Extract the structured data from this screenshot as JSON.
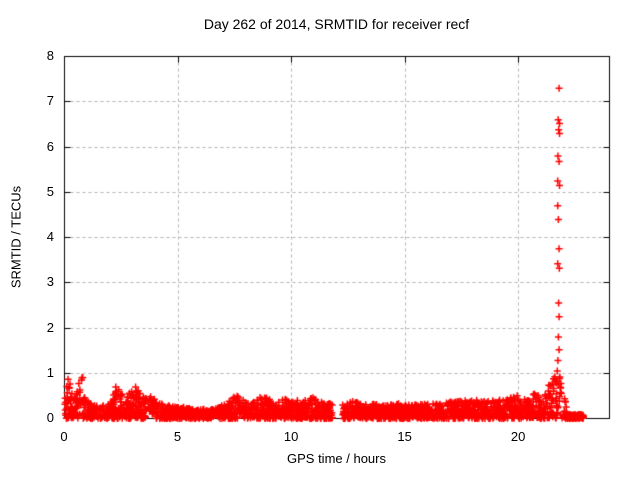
{
  "chart_data": {
    "type": "scatter",
    "title": "Day 262 of 2014, SRMTID for receiver recf",
    "xlabel": "GPS time / hours",
    "ylabel": "SRMTID / TECUs",
    "xlim": [
      0,
      24
    ],
    "ylim": [
      0,
      8
    ],
    "x_ticks": [
      0,
      5,
      10,
      15,
      20
    ],
    "y_ticks": [
      0,
      1,
      2,
      3,
      4,
      5,
      6,
      7,
      8
    ],
    "grid": true,
    "grid_color": "#b3b3b3",
    "axis_color": "#000000",
    "marker": {
      "glyph": "plus",
      "color": "#ff0000",
      "size": 7
    },
    "series_name": "SRMTID",
    "spike_points": [
      [
        21.78,
        7.3
      ],
      [
        21.74,
        6.6
      ],
      [
        21.8,
        6.52
      ],
      [
        21.76,
        6.38
      ],
      [
        21.8,
        6.3
      ],
      [
        21.73,
        5.8
      ],
      [
        21.78,
        5.68
      ],
      [
        21.72,
        5.25
      ],
      [
        21.8,
        5.15
      ],
      [
        21.72,
        4.7
      ],
      [
        21.75,
        4.4
      ],
      [
        21.78,
        3.75
      ],
      [
        21.72,
        3.42
      ],
      [
        21.79,
        3.32
      ],
      [
        21.76,
        2.55
      ],
      [
        21.78,
        2.25
      ],
      [
        21.75,
        1.8
      ],
      [
        21.78,
        1.52
      ],
      [
        21.73,
        1.28
      ],
      [
        21.7,
        1.05
      ]
    ],
    "band": {
      "x_start": 0,
      "x_end": 22.12,
      "points_per_hour": 108,
      "gap": [
        11.8,
        12.25
      ],
      "y_power": 1.35,
      "seed": 20140262,
      "envelope": [
        [
          0.0,
          0.88
        ],
        [
          0.2,
          0.9
        ],
        [
          0.35,
          0.5
        ],
        [
          0.55,
          0.62
        ],
        [
          0.7,
          1.02
        ],
        [
          0.85,
          0.85
        ],
        [
          1.0,
          0.4
        ],
        [
          1.3,
          0.28
        ],
        [
          1.7,
          0.3
        ],
        [
          2.0,
          0.35
        ],
        [
          2.25,
          0.72
        ],
        [
          2.5,
          0.6
        ],
        [
          2.75,
          0.5
        ],
        [
          3.0,
          0.82
        ],
        [
          3.2,
          0.65
        ],
        [
          3.5,
          0.45
        ],
        [
          3.8,
          0.5
        ],
        [
          4.1,
          0.4
        ],
        [
          4.5,
          0.28
        ],
        [
          5.0,
          0.3
        ],
        [
          5.5,
          0.22
        ],
        [
          6.0,
          0.2
        ],
        [
          6.5,
          0.22
        ],
        [
          7.0,
          0.3
        ],
        [
          7.5,
          0.55
        ],
        [
          7.8,
          0.45
        ],
        [
          8.2,
          0.32
        ],
        [
          8.7,
          0.5
        ],
        [
          9.2,
          0.38
        ],
        [
          9.6,
          0.45
        ],
        [
          10.0,
          0.42
        ],
        [
          10.5,
          0.38
        ],
        [
          11.0,
          0.5
        ],
        [
          11.4,
          0.4
        ],
        [
          11.8,
          0.3
        ],
        [
          12.3,
          0.3
        ],
        [
          12.7,
          0.4
        ],
        [
          13.2,
          0.3
        ],
        [
          13.7,
          0.33
        ],
        [
          14.2,
          0.3
        ],
        [
          14.7,
          0.33
        ],
        [
          15.2,
          0.3
        ],
        [
          15.7,
          0.32
        ],
        [
          16.2,
          0.33
        ],
        [
          16.7,
          0.35
        ],
        [
          17.2,
          0.38
        ],
        [
          17.7,
          0.4
        ],
        [
          18.2,
          0.42
        ],
        [
          18.7,
          0.38
        ],
        [
          19.2,
          0.42
        ],
        [
          19.6,
          0.45
        ],
        [
          20.0,
          0.52
        ],
        [
          20.3,
          0.42
        ],
        [
          20.7,
          0.55
        ],
        [
          21.0,
          0.52
        ],
        [
          21.2,
          0.62
        ],
        [
          21.45,
          0.85
        ],
        [
          21.65,
          1.15
        ],
        [
          21.8,
          1.25
        ],
        [
          21.95,
          0.75
        ],
        [
          22.05,
          0.4
        ],
        [
          22.12,
          0.2
        ]
      ]
    },
    "end_blob": {
      "x0": 22.15,
      "x1": 22.85,
      "y_max": 0.09,
      "count": 130
    }
  }
}
